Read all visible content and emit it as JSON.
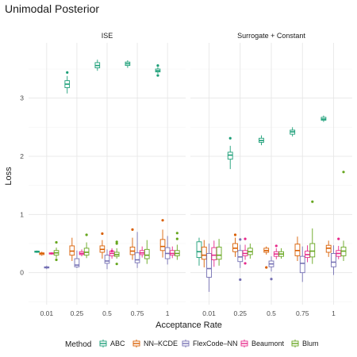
{
  "chart_data": {
    "type": "boxplot",
    "title": "Unimodal Posterior",
    "xlabel": "Acceptance Rate",
    "ylabel": "Loss",
    "categories": [
      "0.01",
      "0.25",
      "0.5",
      "0.75",
      "1"
    ],
    "ylim": [
      -0.55,
      3.95
    ],
    "yticks": [
      0,
      1,
      2,
      3
    ],
    "grid": true,
    "legend": {
      "title": "Method",
      "position": "bottom",
      "entries": [
        "ABC",
        "NN–KCDE",
        "FlexCode–NN",
        "Beaumont",
        "Blum"
      ]
    },
    "colors": {
      "ABC": "#1b9e77",
      "NN–KCDE": "#d95f02",
      "FlexCode–NN": "#7570b3",
      "Beaumont": "#e7298a",
      "Blum": "#66a61e"
    },
    "panels": [
      {
        "name": "ISE",
        "boxes": [
          [
            {
              "min": 0.34,
              "q1": 0.35,
              "med": 0.36,
              "q3": 0.37,
              "max": 0.38,
              "outliers": []
            },
            {
              "min": 0.29,
              "q1": 0.31,
              "med": 0.33,
              "q3": 0.34,
              "max": 0.36,
              "outliers": []
            },
            {
              "min": 0.06,
              "q1": 0.08,
              "med": 0.09,
              "q3": 0.1,
              "max": 0.12,
              "outliers": []
            },
            {
              "min": 0.31,
              "q1": 0.32,
              "med": 0.33,
              "q3": 0.34,
              "max": 0.35,
              "outliers": []
            },
            {
              "min": 0.25,
              "q1": 0.3,
              "med": 0.34,
              "q3": 0.38,
              "max": 0.43,
              "outliers": [
                0.52,
                0.22
              ]
            }
          ],
          [
            {
              "min": 3.08,
              "q1": 3.18,
              "med": 3.24,
              "q3": 3.3,
              "max": 3.38,
              "outliers": [
                3.44
              ]
            },
            {
              "min": 0.2,
              "q1": 0.3,
              "med": 0.37,
              "q3": 0.46,
              "max": 0.6,
              "outliers": []
            },
            {
              "min": 0.08,
              "q1": 0.1,
              "med": 0.13,
              "q3": 0.24,
              "max": 0.38,
              "outliers": []
            },
            {
              "min": 0.28,
              "q1": 0.31,
              "med": 0.33,
              "q3": 0.36,
              "max": 0.4,
              "outliers": []
            },
            {
              "min": 0.25,
              "q1": 0.3,
              "med": 0.35,
              "q3": 0.42,
              "max": 0.52,
              "outliers": [
                0.65
              ]
            }
          ],
          [
            {
              "min": 3.47,
              "q1": 3.52,
              "med": 3.56,
              "q3": 3.61,
              "max": 3.66,
              "outliers": []
            },
            {
              "min": 0.24,
              "q1": 0.35,
              "med": 0.4,
              "q3": 0.46,
              "max": 0.56,
              "outliers": [
                0.67
              ]
            },
            {
              "min": 0.06,
              "q1": 0.16,
              "med": 0.2,
              "q3": 0.3,
              "max": 0.4,
              "outliers": []
            },
            {
              "min": 0.24,
              "q1": 0.29,
              "med": 0.33,
              "q3": 0.37,
              "max": 0.42,
              "outliers": [
                0.37
              ]
            },
            {
              "min": 0.24,
              "q1": 0.28,
              "med": 0.31,
              "q3": 0.35,
              "max": 0.42,
              "outliers": [
                0.53,
                0.5,
                0.15
              ]
            }
          ],
          [
            {
              "min": 3.52,
              "q1": 3.56,
              "med": 3.59,
              "q3": 3.62,
              "max": 3.65,
              "outliers": []
            },
            {
              "min": 0.22,
              "q1": 0.31,
              "med": 0.37,
              "q3": 0.44,
              "max": 0.6,
              "outliers": [
                0.74
              ]
            },
            {
              "min": 0.08,
              "q1": 0.17,
              "med": 0.22,
              "q3": 0.34,
              "max": 0.7,
              "outliers": []
            },
            {
              "min": 0.26,
              "q1": 0.31,
              "med": 0.34,
              "q3": 0.38,
              "max": 0.45,
              "outliers": []
            },
            {
              "min": 0.15,
              "q1": 0.24,
              "med": 0.3,
              "q3": 0.4,
              "max": 0.56,
              "outliers": []
            }
          ],
          [
            {
              "min": 3.42,
              "q1": 3.45,
              "med": 3.47,
              "q3": 3.5,
              "max": 3.53,
              "outliers": [
                3.56,
                3.39
              ]
            },
            {
              "min": 0.26,
              "q1": 0.38,
              "med": 0.45,
              "q3": 0.57,
              "max": 0.74,
              "outliers": [
                0.9
              ]
            },
            {
              "min": 0.14,
              "q1": 0.24,
              "med": 0.33,
              "q3": 0.43,
              "max": 0.63,
              "outliers": []
            },
            {
              "min": 0.25,
              "q1": 0.3,
              "med": 0.33,
              "q3": 0.38,
              "max": 0.45,
              "outliers": []
            },
            {
              "min": 0.22,
              "q1": 0.29,
              "med": 0.33,
              "q3": 0.38,
              "max": 0.48,
              "outliers": [
                0.68,
                0.58
              ]
            }
          ]
        ]
      },
      {
        "name": "Surrogate + Constant",
        "boxes": [
          [
            {
              "min": 0.12,
              "q1": 0.26,
              "med": 0.36,
              "q3": 0.53,
              "max": 0.6,
              "outliers": []
            },
            {
              "min": 0.09,
              "q1": 0.23,
              "med": 0.3,
              "q3": 0.44,
              "max": 0.56,
              "outliers": []
            },
            {
              "min": -0.33,
              "q1": -0.08,
              "med": 0.07,
              "q3": 0.33,
              "max": 0.5,
              "outliers": []
            },
            {
              "min": 0.1,
              "q1": 0.22,
              "med": 0.3,
              "q3": 0.43,
              "max": 0.55,
              "outliers": []
            },
            {
              "min": 0.12,
              "q1": 0.23,
              "med": 0.3,
              "q3": 0.44,
              "max": 0.58,
              "outliers": []
            }
          ],
          [
            {
              "min": 1.78,
              "q1": 1.95,
              "med": 2.02,
              "q3": 2.07,
              "max": 2.18,
              "outliers": [
                2.31
              ]
            },
            {
              "min": 0.27,
              "q1": 0.36,
              "med": 0.42,
              "q3": 0.5,
              "max": 0.6,
              "outliers": [
                0.65
              ]
            },
            {
              "min": 0.08,
              "q1": 0.19,
              "med": 0.27,
              "q3": 0.38,
              "max": 0.48,
              "outliers": [
                -0.12,
                0.57
              ]
            },
            {
              "min": 0.22,
              "q1": 0.29,
              "med": 0.33,
              "q3": 0.38,
              "max": 0.48,
              "outliers": [
                0.58,
                0.16
              ]
            },
            {
              "min": 0.24,
              "q1": 0.31,
              "med": 0.36,
              "q3": 0.42,
              "max": 0.5,
              "outliers": []
            }
          ],
          [
            {
              "min": 2.19,
              "q1": 2.24,
              "med": 2.27,
              "q3": 2.31,
              "max": 2.36,
              "outliers": []
            },
            {
              "min": 0.31,
              "q1": 0.35,
              "med": 0.38,
              "q3": 0.42,
              "max": 0.45,
              "outliers": [
                0.09
              ]
            },
            {
              "min": 0.02,
              "q1": 0.1,
              "med": 0.15,
              "q3": 0.2,
              "max": 0.28,
              "outliers": [
                -0.11
              ]
            },
            {
              "min": 0.23,
              "q1": 0.28,
              "med": 0.32,
              "q3": 0.36,
              "max": 0.42,
              "outliers": [
                0.46
              ]
            },
            {
              "min": 0.24,
              "q1": 0.28,
              "med": 0.32,
              "q3": 0.36,
              "max": 0.42,
              "outliers": []
            }
          ],
          [
            {
              "min": 2.34,
              "q1": 2.38,
              "med": 2.42,
              "q3": 2.45,
              "max": 2.5,
              "outliers": []
            },
            {
              "min": 0.2,
              "q1": 0.29,
              "med": 0.38,
              "q3": 0.49,
              "max": 0.62,
              "outliers": []
            },
            {
              "min": -0.16,
              "q1": 0.0,
              "med": 0.16,
              "q3": 0.28,
              "max": 0.45,
              "outliers": []
            },
            {
              "min": 0.18,
              "q1": 0.26,
              "med": 0.31,
              "q3": 0.37,
              "max": 0.47,
              "outliers": []
            },
            {
              "min": 0.15,
              "q1": 0.27,
              "med": 0.37,
              "q3": 0.5,
              "max": 0.76,
              "outliers": [
                1.22
              ]
            }
          ],
          [
            {
              "min": 2.59,
              "q1": 2.62,
              "med": 2.64,
              "q3": 2.67,
              "max": 2.7,
              "outliers": []
            },
            {
              "min": 0.27,
              "q1": 0.35,
              "med": 0.42,
              "q3": 0.47,
              "max": 0.55,
              "outliers": []
            },
            {
              "min": -0.04,
              "q1": 0.1,
              "med": 0.18,
              "q3": 0.33,
              "max": 0.47,
              "outliers": []
            },
            {
              "min": 0.23,
              "q1": 0.28,
              "med": 0.33,
              "q3": 0.38,
              "max": 0.46,
              "outliers": [
                0.58
              ]
            },
            {
              "min": 0.2,
              "q1": 0.29,
              "med": 0.37,
              "q3": 0.44,
              "max": 0.55,
              "outliers": [
                1.73
              ]
            }
          ]
        ]
      }
    ]
  }
}
